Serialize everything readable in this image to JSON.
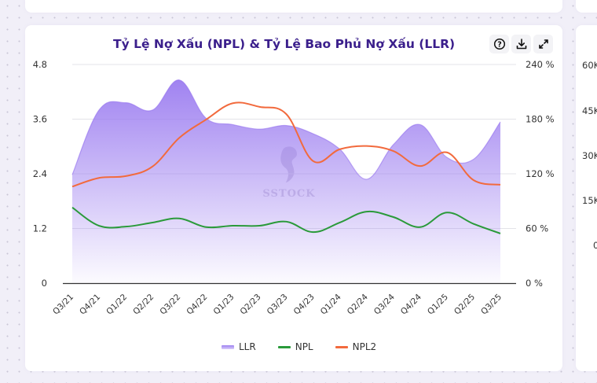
{
  "card": {
    "title": "Tỷ Lệ Nợ Xấu (NPL) & Tỷ Lệ Bao Phủ Nợ Xấu (LLR)",
    "tools": [
      {
        "name": "help-icon",
        "glyph": "?"
      },
      {
        "name": "download-icon",
        "glyph": "download"
      },
      {
        "name": "expand-icon",
        "glyph": "expand"
      }
    ],
    "watermark": "SSTOCK"
  },
  "colors": {
    "title": "#3b1f8c",
    "llr": "#9b7cf0",
    "npl": "#2a9a3a",
    "npl2": "#f26a3d",
    "grid": "#e3e3e8",
    "axis": "#333333"
  },
  "side_axis": {
    "ticks": [
      "60K",
      "45K",
      "30K",
      "15K",
      "0"
    ]
  },
  "chart_data": {
    "type": "line",
    "title": "Tỷ Lệ Nợ Xấu (NPL) & Tỷ Lệ Bao Phủ Nợ Xấu (LLR)",
    "categories": [
      "Q3/21",
      "Q4/21",
      "Q1/22",
      "Q2/22",
      "Q3/22",
      "Q4/22",
      "Q1/23",
      "Q2/23",
      "Q3/23",
      "Q4/23",
      "Q1/24",
      "Q2/24",
      "Q3/24",
      "Q4/24",
      "Q1/25",
      "Q2/25",
      "Q3/25"
    ],
    "y_left": {
      "range": [
        0,
        4.8
      ],
      "ticks": [
        "0",
        "1.2",
        "2.4",
        "3.6",
        "4.8"
      ]
    },
    "y_right": {
      "range": [
        0,
        240
      ],
      "ticks": [
        "0 %",
        "60 %",
        "120 %",
        "180 %",
        "240 %"
      ]
    },
    "grid": true,
    "legend_position": "bottom",
    "series": [
      {
        "name": "LLR",
        "type": "area",
        "axis": "right",
        "values": [
          119,
          190,
          198,
          190,
          223,
          181,
          174,
          169,
          173,
          164,
          147,
          114,
          152,
          174,
          138,
          136,
          177
        ]
      },
      {
        "name": "NPL",
        "type": "line",
        "axis": "left",
        "values": [
          1.66,
          1.26,
          1.24,
          1.33,
          1.42,
          1.23,
          1.26,
          1.26,
          1.35,
          1.12,
          1.33,
          1.57,
          1.45,
          1.23,
          1.55,
          1.3,
          1.09
        ]
      },
      {
        "name": "NPL2",
        "type": "line",
        "axis": "left",
        "values": [
          2.12,
          2.31,
          2.35,
          2.56,
          3.19,
          3.59,
          3.95,
          3.87,
          3.71,
          2.68,
          2.94,
          3.01,
          2.9,
          2.57,
          2.87,
          2.26,
          2.16
        ]
      }
    ]
  }
}
